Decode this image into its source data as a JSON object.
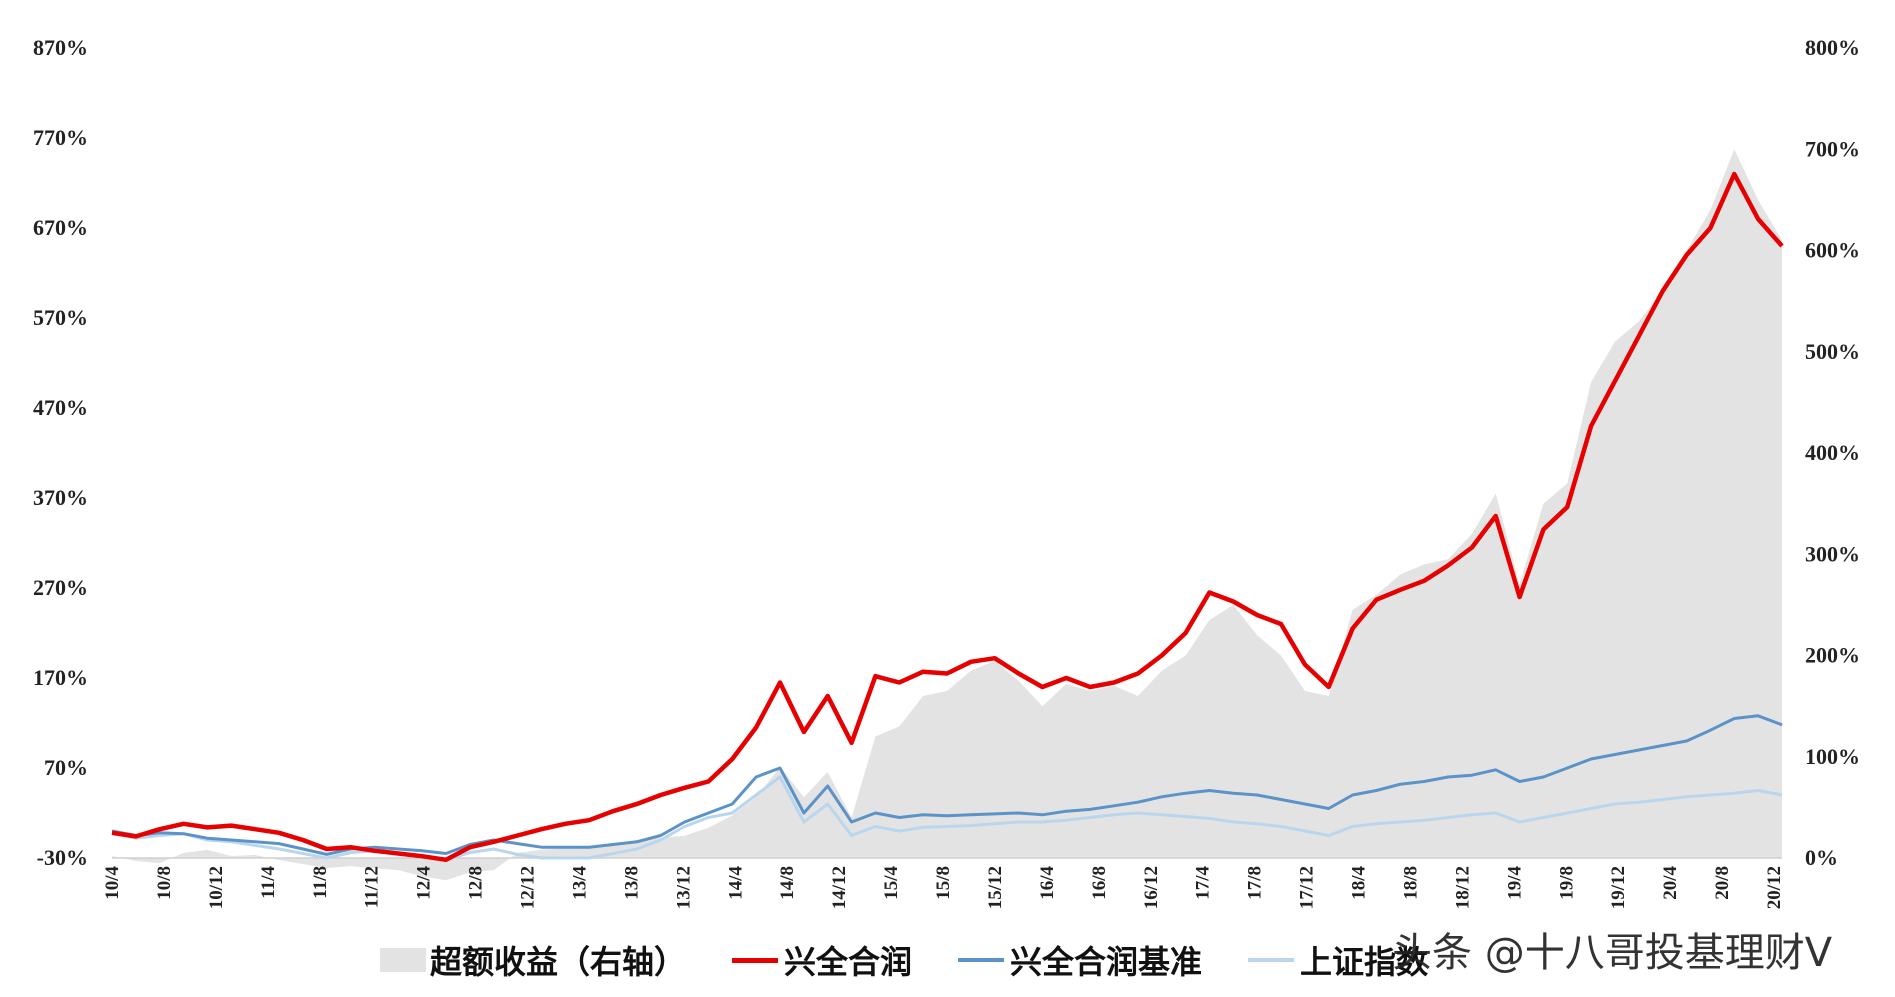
{
  "chart_data": {
    "type": "area",
    "left_axis": {
      "ticks": [
        "870%",
        "770%",
        "670%",
        "570%",
        "470%",
        "370%",
        "270%",
        "170%",
        "70%",
        "-30%"
      ],
      "ylim": [
        -30,
        870
      ]
    },
    "right_axis": {
      "ticks": [
        "800%",
        "700%",
        "600%",
        "500%",
        "400%",
        "300%",
        "200%",
        "100%",
        "0%"
      ],
      "ylim": [
        0,
        800
      ]
    },
    "x_ticks": [
      "10/4",
      "10/8",
      "10/12",
      "11/4",
      "11/8",
      "11/12",
      "12/4",
      "12/8",
      "12/12",
      "13/4",
      "13/8",
      "13/12",
      "14/4",
      "14/8",
      "14/12",
      "15/4",
      "15/8",
      "15/12",
      "16/4",
      "16/8",
      "16/12",
      "17/4",
      "17/8",
      "17/12",
      "18/4",
      "18/8",
      "18/12",
      "19/4",
      "19/8",
      "19/12",
      "20/4",
      "20/8",
      "20/12"
    ],
    "x": [
      0,
      2,
      4,
      6,
      8,
      10,
      12,
      14,
      16,
      18,
      20,
      22,
      24,
      26,
      28,
      30,
      32,
      34,
      36,
      38,
      40,
      42,
      44,
      46,
      48,
      50,
      52,
      54,
      56,
      58,
      60,
      62,
      64,
      66,
      68,
      70,
      72,
      74,
      76,
      78,
      80,
      82,
      84,
      86,
      88,
      90,
      92,
      94,
      96,
      98,
      100,
      102,
      104,
      106,
      108,
      110,
      112,
      114,
      116,
      118,
      120,
      122,
      124,
      126,
      128,
      130,
      132,
      134,
      136,
      138,
      140
    ],
    "series": [
      {
        "name": "超额收益（右轴）",
        "axis": "right",
        "color": "#e3e3e3",
        "values": [
          2,
          -3,
          -5,
          5,
          8,
          2,
          3,
          -2,
          -6,
          -10,
          -8,
          -10,
          -12,
          -18,
          -22,
          -14,
          -12,
          5,
          8,
          10,
          12,
          14,
          18,
          20,
          22,
          30,
          42,
          60,
          90,
          60,
          85,
          40,
          120,
          130,
          160,
          165,
          185,
          195,
          175,
          150,
          172,
          165,
          170,
          160,
          185,
          200,
          235,
          250,
          220,
          200,
          165,
          160,
          245,
          260,
          280,
          290,
          295,
          320,
          360,
          270,
          350,
          370,
          470,
          510,
          530,
          560,
          600,
          640,
          700,
          650,
          610
        ]
      },
      {
        "name": "兴全合润",
        "axis": "left",
        "color": "#e60000",
        "values": [
          -2,
          -6,
          2,
          8,
          4,
          6,
          2,
          -2,
          -10,
          -20,
          -18,
          -22,
          -25,
          -28,
          -32,
          -18,
          -12,
          -5,
          2,
          8,
          12,
          22,
          30,
          40,
          48,
          55,
          80,
          115,
          165,
          110,
          150,
          98,
          172,
          165,
          177,
          175,
          188,
          192,
          175,
          160,
          170,
          160,
          165,
          175,
          195,
          220,
          265,
          255,
          240,
          230,
          185,
          160,
          225,
          257,
          268,
          278,
          295,
          315,
          350,
          260,
          335,
          360,
          450,
          500,
          550,
          600,
          640,
          670,
          730,
          680,
          650
        ]
      },
      {
        "name": "兴全合润基准",
        "axis": "left",
        "color": "#5b93c9",
        "values": [
          0,
          -5,
          -2,
          -3,
          -8,
          -10,
          -12,
          -14,
          -20,
          -26,
          -20,
          -18,
          -20,
          -22,
          -25,
          -15,
          -10,
          -14,
          -18,
          -18,
          -18,
          -15,
          -12,
          -5,
          10,
          20,
          30,
          60,
          70,
          20,
          50,
          10,
          20,
          15,
          18,
          17,
          18,
          19,
          20,
          18,
          22,
          24,
          28,
          32,
          38,
          42,
          45,
          42,
          40,
          35,
          30,
          25,
          40,
          45,
          52,
          55,
          60,
          62,
          68,
          55,
          60,
          70,
          80,
          85,
          90,
          95,
          100,
          112,
          125,
          128,
          118
        ]
      },
      {
        "name": "上证指数",
        "axis": "left",
        "color": "#b9d6ee",
        "values": [
          -2,
          -8,
          -5,
          -3,
          -10,
          -12,
          -16,
          -20,
          -25,
          -30,
          -24,
          -22,
          -25,
          -28,
          -32,
          -24,
          -20,
          -26,
          -30,
          -30,
          -30,
          -25,
          -20,
          -10,
          5,
          15,
          20,
          40,
          60,
          10,
          30,
          -5,
          5,
          0,
          4,
          5,
          6,
          8,
          10,
          10,
          12,
          15,
          18,
          20,
          18,
          16,
          14,
          10,
          8,
          5,
          0,
          -5,
          5,
          8,
          10,
          12,
          15,
          18,
          20,
          10,
          15,
          20,
          25,
          30,
          32,
          35,
          38,
          40,
          42,
          45,
          40
        ]
      }
    ]
  },
  "legend": [
    {
      "label": "超额收益（右轴）",
      "kind": "area",
      "color": "#e3e3e3"
    },
    {
      "label": "兴全合润",
      "kind": "line",
      "color": "#e60000"
    },
    {
      "label": "兴全合润基准",
      "kind": "line",
      "color": "#5b93c9"
    },
    {
      "label": "上证指数",
      "kind": "line",
      "color": "#b9d6ee"
    }
  ],
  "watermark": "头条 @十八哥投基理财V"
}
